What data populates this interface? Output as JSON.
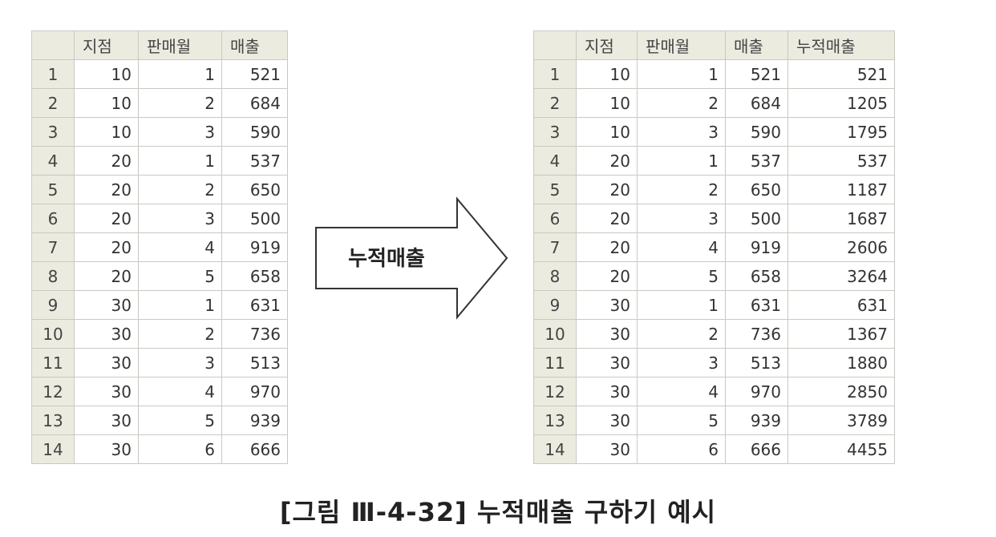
{
  "left_table": {
    "columns": [
      "지점",
      "판매월",
      "매출"
    ],
    "rows": [
      [
        "1",
        "10",
        "1",
        "521"
      ],
      [
        "2",
        "10",
        "2",
        "684"
      ],
      [
        "3",
        "10",
        "3",
        "590"
      ],
      [
        "4",
        "20",
        "1",
        "537"
      ],
      [
        "5",
        "20",
        "2",
        "650"
      ],
      [
        "6",
        "20",
        "3",
        "500"
      ],
      [
        "7",
        "20",
        "4",
        "919"
      ],
      [
        "8",
        "20",
        "5",
        "658"
      ],
      [
        "9",
        "30",
        "1",
        "631"
      ],
      [
        "10",
        "30",
        "2",
        "736"
      ],
      [
        "11",
        "30",
        "3",
        "513"
      ],
      [
        "12",
        "30",
        "4",
        "970"
      ],
      [
        "13",
        "30",
        "5",
        "939"
      ],
      [
        "14",
        "30",
        "6",
        "666"
      ]
    ]
  },
  "arrow": {
    "label": "누적매출"
  },
  "right_table": {
    "columns": [
      "지점",
      "판매월",
      "매출",
      "누적매출"
    ],
    "rows": [
      [
        "1",
        "10",
        "1",
        "521",
        "521"
      ],
      [
        "2",
        "10",
        "2",
        "684",
        "1205"
      ],
      [
        "3",
        "10",
        "3",
        "590",
        "1795"
      ],
      [
        "4",
        "20",
        "1",
        "537",
        "537"
      ],
      [
        "5",
        "20",
        "2",
        "650",
        "1187"
      ],
      [
        "6",
        "20",
        "3",
        "500",
        "1687"
      ],
      [
        "7",
        "20",
        "4",
        "919",
        "2606"
      ],
      [
        "8",
        "20",
        "5",
        "658",
        "3264"
      ],
      [
        "9",
        "30",
        "1",
        "631",
        "631"
      ],
      [
        "10",
        "30",
        "2",
        "736",
        "1367"
      ],
      [
        "11",
        "30",
        "3",
        "513",
        "1880"
      ],
      [
        "12",
        "30",
        "4",
        "970",
        "2850"
      ],
      [
        "13",
        "30",
        "5",
        "939",
        "3789"
      ],
      [
        "14",
        "30",
        "6",
        "666",
        "4455"
      ]
    ]
  },
  "caption": "[그림 Ⅲ-4-32] 누적매출 구하기 예시"
}
